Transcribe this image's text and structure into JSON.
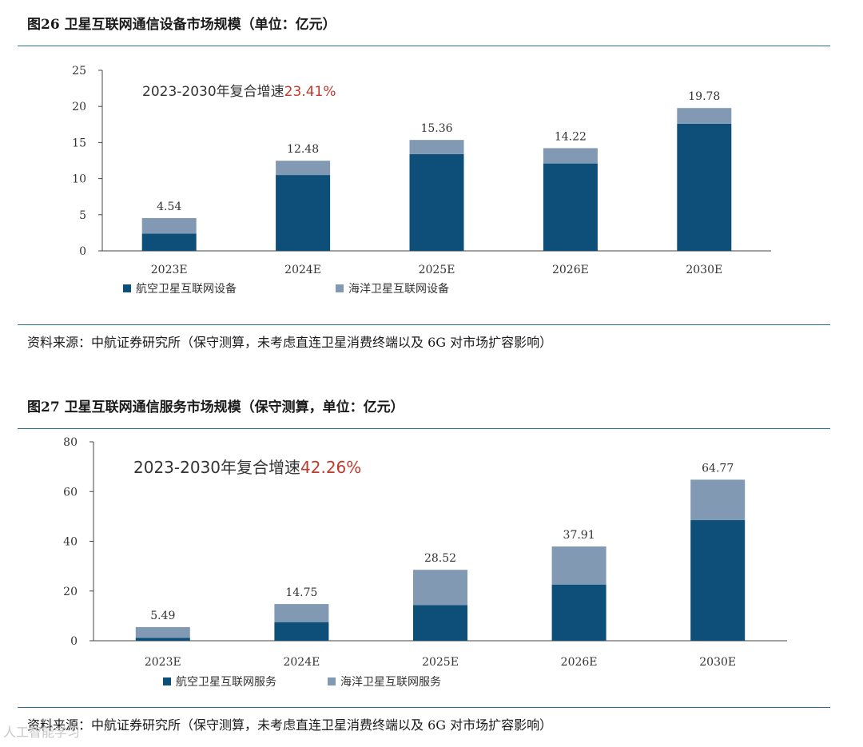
{
  "figures": [
    {
      "title": "图26 卫星互联网通信设备市场规模（单位：亿元）",
      "source": "资料来源：中航证券研究所（保守测算，未考虑直连卫星消费终端以及 6G 对市场扩容影响）",
      "cagr_prefix": "2023-2030年复合增速",
      "cagr_value": "23.41%"
    },
    {
      "title": "图27 卫星互联网通信服务市场规模（保守测算，单位：亿元）",
      "source": "资料来源：中航证券研究所（保守测算，未考虑直连卫星消费终端以及 6G 对市场扩容影响）",
      "cagr_prefix": "2023-2030年复合增速",
      "cagr_value": "42.26%"
    }
  ],
  "watermark": "人工智能学习",
  "colors": {
    "dark_series": "#0d4f79",
    "light_series": "#8299b3",
    "cagr_highlight": "#c0392b",
    "rule": "#2f6d8e"
  },
  "chart_data": [
    {
      "type": "bar",
      "stacked": true,
      "categories": [
        "2023E",
        "2024E",
        "2025E",
        "2026E",
        "2030E"
      ],
      "series": [
        {
          "name": "航空卫星互联网设备",
          "values": [
            2.4,
            10.5,
            13.4,
            12.1,
            17.6
          ]
        },
        {
          "name": "海洋卫星互联网设备",
          "values": [
            2.14,
            1.98,
            1.96,
            2.12,
            2.18
          ]
        }
      ],
      "totals": [
        "4.54",
        "12.48",
        "15.36",
        "14.22",
        "19.78"
      ],
      "yticks": [
        0,
        5,
        10,
        15,
        20,
        25
      ],
      "ylim": [
        0,
        25
      ],
      "legend": "bottom",
      "grid": false
    },
    {
      "type": "bar",
      "stacked": true,
      "categories": [
        "2023E",
        "2024E",
        "2025E",
        "2026E",
        "2030E"
      ],
      "series": [
        {
          "name": "航空卫星互联网服务",
          "values": [
            1.2,
            7.5,
            14.3,
            22.6,
            48.5
          ]
        },
        {
          "name": "海洋卫星互联网服务",
          "values": [
            4.29,
            7.25,
            14.22,
            15.31,
            16.27
          ]
        }
      ],
      "totals": [
        "5.49",
        "14.75",
        "28.52",
        "37.91",
        "64.77"
      ],
      "yticks": [
        0,
        20,
        40,
        60,
        80
      ],
      "ylim": [
        0,
        80
      ],
      "legend": "bottom",
      "grid": false
    }
  ]
}
